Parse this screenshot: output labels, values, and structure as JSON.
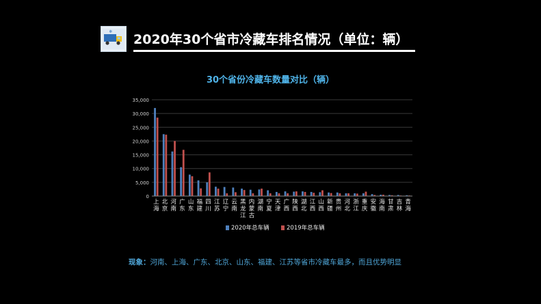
{
  "header": {
    "title": "2020年30个省市冷藏车排名情况（单位：辆）",
    "logo_icon": "refrigerated-truck-icon"
  },
  "chart_data": {
    "type": "bar",
    "title": "30个省份冷藏车数量对比（辆）",
    "xlabel": "",
    "ylabel": "",
    "ylim": [
      0,
      35000
    ],
    "yticks": [
      "0",
      "5,000",
      "10,000",
      "15,000",
      "20,000",
      "25,000",
      "30,000",
      "35,000"
    ],
    "grid": true,
    "legend_position": "bottom",
    "categories": [
      "上海",
      "北京",
      "河南",
      "广东",
      "山东",
      "福建",
      "四川",
      "江苏",
      "辽宁",
      "云南",
      "黑龙江",
      "内蒙古",
      "湖南",
      "宁夏",
      "天津",
      "广西",
      "陕西",
      "湖北",
      "江西",
      "山西",
      "新疆",
      "贵州",
      "河北",
      "浙江",
      "重庆",
      "安徽",
      "海南",
      "甘肃",
      "吉林",
      "青海"
    ],
    "series": [
      {
        "name": "2020年总车辆",
        "color": "#4f81bd",
        "values": [
          32000,
          22500,
          16200,
          10500,
          7800,
          5700,
          5000,
          3400,
          3300,
          3100,
          2700,
          2300,
          2400,
          2100,
          1500,
          1700,
          1600,
          1700,
          1500,
          1400,
          1300,
          1300,
          1000,
          1000,
          1000,
          700,
          500,
          400,
          400,
          300
        ]
      },
      {
        "name": "2019年总车辆",
        "color": "#c0504d",
        "values": [
          28500,
          22300,
          20000,
          16800,
          7200,
          2800,
          8600,
          2700,
          1000,
          1400,
          2200,
          1000,
          2700,
          1000,
          1000,
          1000,
          1700,
          1500,
          1200,
          2100,
          1100,
          1000,
          1000,
          900,
          1600,
          400,
          500,
          300,
          200,
          200
        ]
      }
    ]
  },
  "footer": {
    "label": "现象：",
    "text": "河南、上海、广东、北京、山东、福建、江苏等省市冷藏车最多，而且优势明显"
  }
}
